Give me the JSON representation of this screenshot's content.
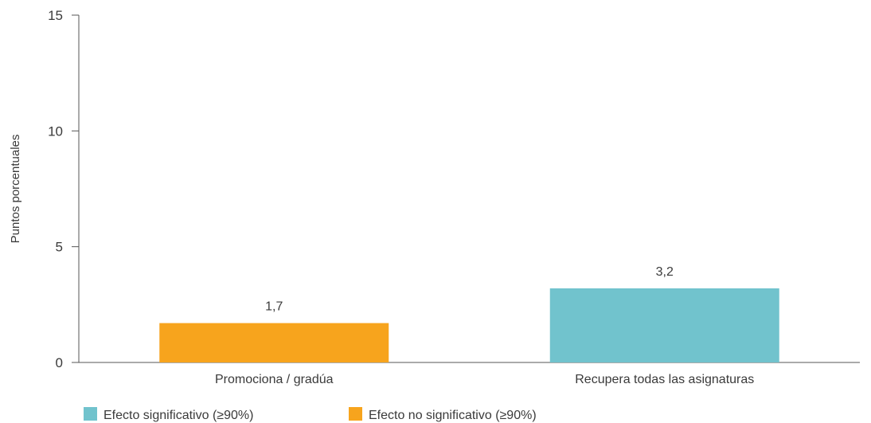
{
  "chart_data": {
    "type": "bar",
    "title": "",
    "xlabel": "",
    "ylabel": "Puntos porcentuales",
    "ylim": [
      0,
      15
    ],
    "yticks": [
      0,
      5,
      10,
      15
    ],
    "ytick_labels": [
      "0",
      "5",
      "10",
      "15"
    ],
    "grid": false,
    "legend_position": "bottom-left",
    "categories": [
      "Promociona / gradúa",
      "Recupera todas las asignaturas"
    ],
    "values": [
      1.7,
      3.2
    ],
    "value_labels": [
      "1,7",
      "3,2"
    ],
    "bar_groups": [
      "no_significativo",
      "significativo"
    ],
    "legend": [
      {
        "key": "significativo",
        "label": "Efecto significativo (≥90%)",
        "color": "#71c3cd"
      },
      {
        "key": "no_significativo",
        "label": "Efecto no significativo (≥90%)",
        "color": "#f7a41d"
      }
    ],
    "axis_color": "#555555"
  }
}
